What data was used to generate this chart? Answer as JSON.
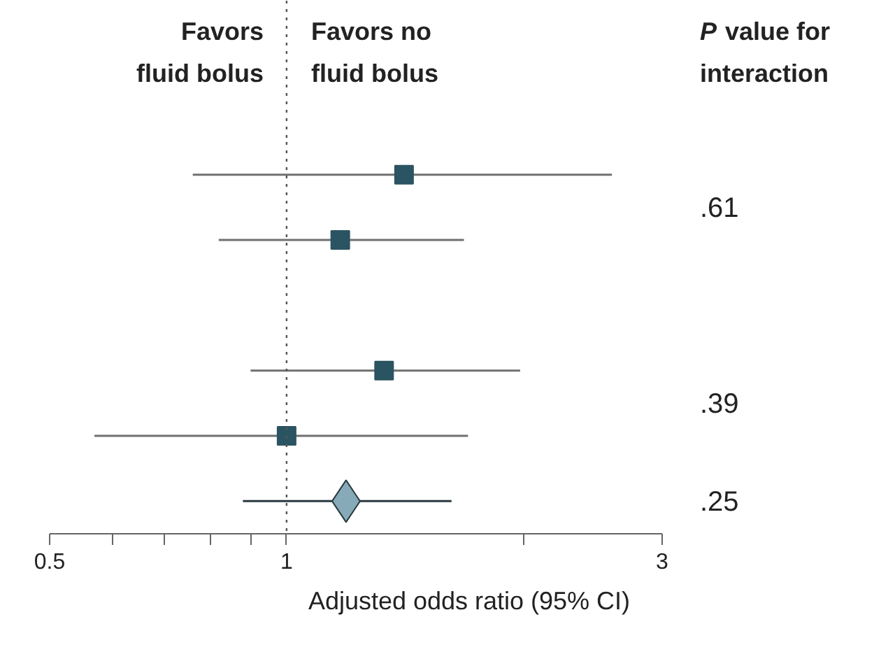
{
  "chart_data": {
    "type": "scatter",
    "orientation": "horizontal",
    "log": "x",
    "xlabel": "Adjusted odds ratio (95% CI)",
    "categories": [
      null,
      null,
      null,
      null,
      null,
      null
    ],
    "xlim": [
      0.5,
      3
    ],
    "xticks": [
      0.5,
      {
        "value": 0.6,
        "label": null
      },
      {
        "value": 0.7,
        "label": null
      },
      {
        "value": 0.8,
        "label": null
      },
      {
        "value": 0.9,
        "label": null
      },
      1,
      {
        "value": 2,
        "label": null
      },
      3
    ],
    "series": [
      {
        "color": "#2b5462",
        "marker": "square",
        "values": [
          1.41,
          1.17,
          null,
          1.33,
          1.0,
          null
        ],
        "errors": [
          [
            0.76,
            2.59
          ],
          [
            0.82,
            1.68
          ],
          null,
          [
            0.9,
            1.98
          ],
          [
            0.57,
            1.7
          ],
          null
        ]
      },
      {
        "color": "#87aab8",
        "marker": "diamond",
        "values": [
          null,
          null,
          null,
          null,
          null,
          1.19
        ],
        "errors": [
          null,
          null,
          null,
          null,
          null,
          [
            0.88,
            1.62
          ]
        ]
      }
    ],
    "ref_lines": [
      {
        "axis": "x",
        "value": 1,
        "color": "#555555",
        "line_style": "dotted"
      }
    ],
    "annotations": [
      "Favors fluid bolus",
      "Favors no fluid bolus",
      "P value for interaction",
      ".61",
      ".39",
      ".25"
    ],
    "grid": false,
    "tick_labels": "x"
  }
}
